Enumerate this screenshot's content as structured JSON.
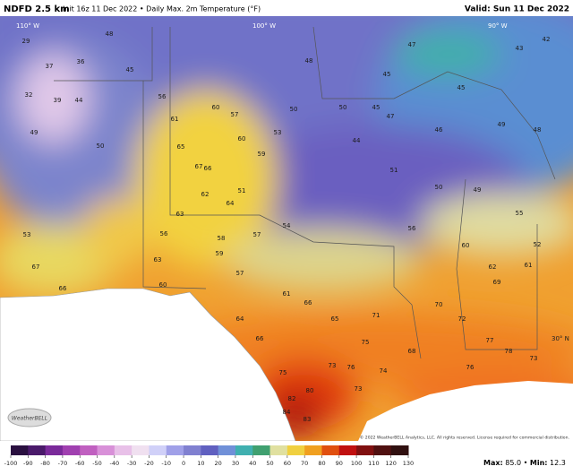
{
  "header": {
    "title": "NDFD 2.5 km",
    "subtitle": "Init 16z 11 Dec 2022 • Daily Max. 2m Temperature (°F)",
    "valid": "Valid: Sun 11 Dec 2022"
  },
  "map": {
    "graticule": [
      "110° W",
      "100° W",
      "90° W",
      "30° N"
    ],
    "stations": [
      29,
      37,
      36,
      48,
      45,
      32,
      39,
      44,
      49,
      50,
      56,
      61,
      60,
      57,
      65,
      67,
      66,
      59,
      60,
      53,
      50,
      48,
      50,
      45,
      44,
      47,
      46,
      45,
      49,
      48,
      43,
      42,
      47,
      45,
      51,
      50,
      49,
      55,
      52,
      61,
      62,
      60,
      57,
      58,
      59,
      64,
      62,
      63,
      56,
      53,
      66,
      67,
      63,
      60,
      57,
      61,
      66,
      65,
      64,
      66,
      71,
      70,
      72,
      68,
      75,
      76,
      73,
      74,
      75,
      82,
      83,
      84,
      80,
      73,
      76,
      73,
      78,
      77,
      69,
      56,
      54,
      51
    ],
    "logo": "WeatherBELL",
    "copyright": "© 2022 WeatherBELL Analytics, LLC. All rights reserved. License required for commercial distribution."
  },
  "colorbar": {
    "ticks": [
      -100,
      -90,
      -80,
      -70,
      -60,
      -50,
      -40,
      -30,
      -20,
      -10,
      0,
      10,
      20,
      30,
      40,
      50,
      60,
      70,
      80,
      90,
      100,
      110,
      120,
      130
    ],
    "colors": [
      "#2a1040",
      "#4a1a6a",
      "#7a2a9a",
      "#a040b0",
      "#c060c0",
      "#d890d8",
      "#e8c0e8",
      "#f0e0f0",
      "#d0d0f8",
      "#a0a0e8",
      "#8080d0",
      "#6060c0",
      "#7090d8",
      "#40b0b0",
      "#40a070",
      "#e0e0a0",
      "#f0d040",
      "#f0a020",
      "#e05010",
      "#c01010",
      "#801010",
      "#501010",
      "#301010"
    ],
    "max_label": "Max:",
    "max": {
      "value": 85.0,
      "label": "85.0"
    },
    "separator": "•",
    "min_label": "Min:",
    "min": 12.3
  }
}
